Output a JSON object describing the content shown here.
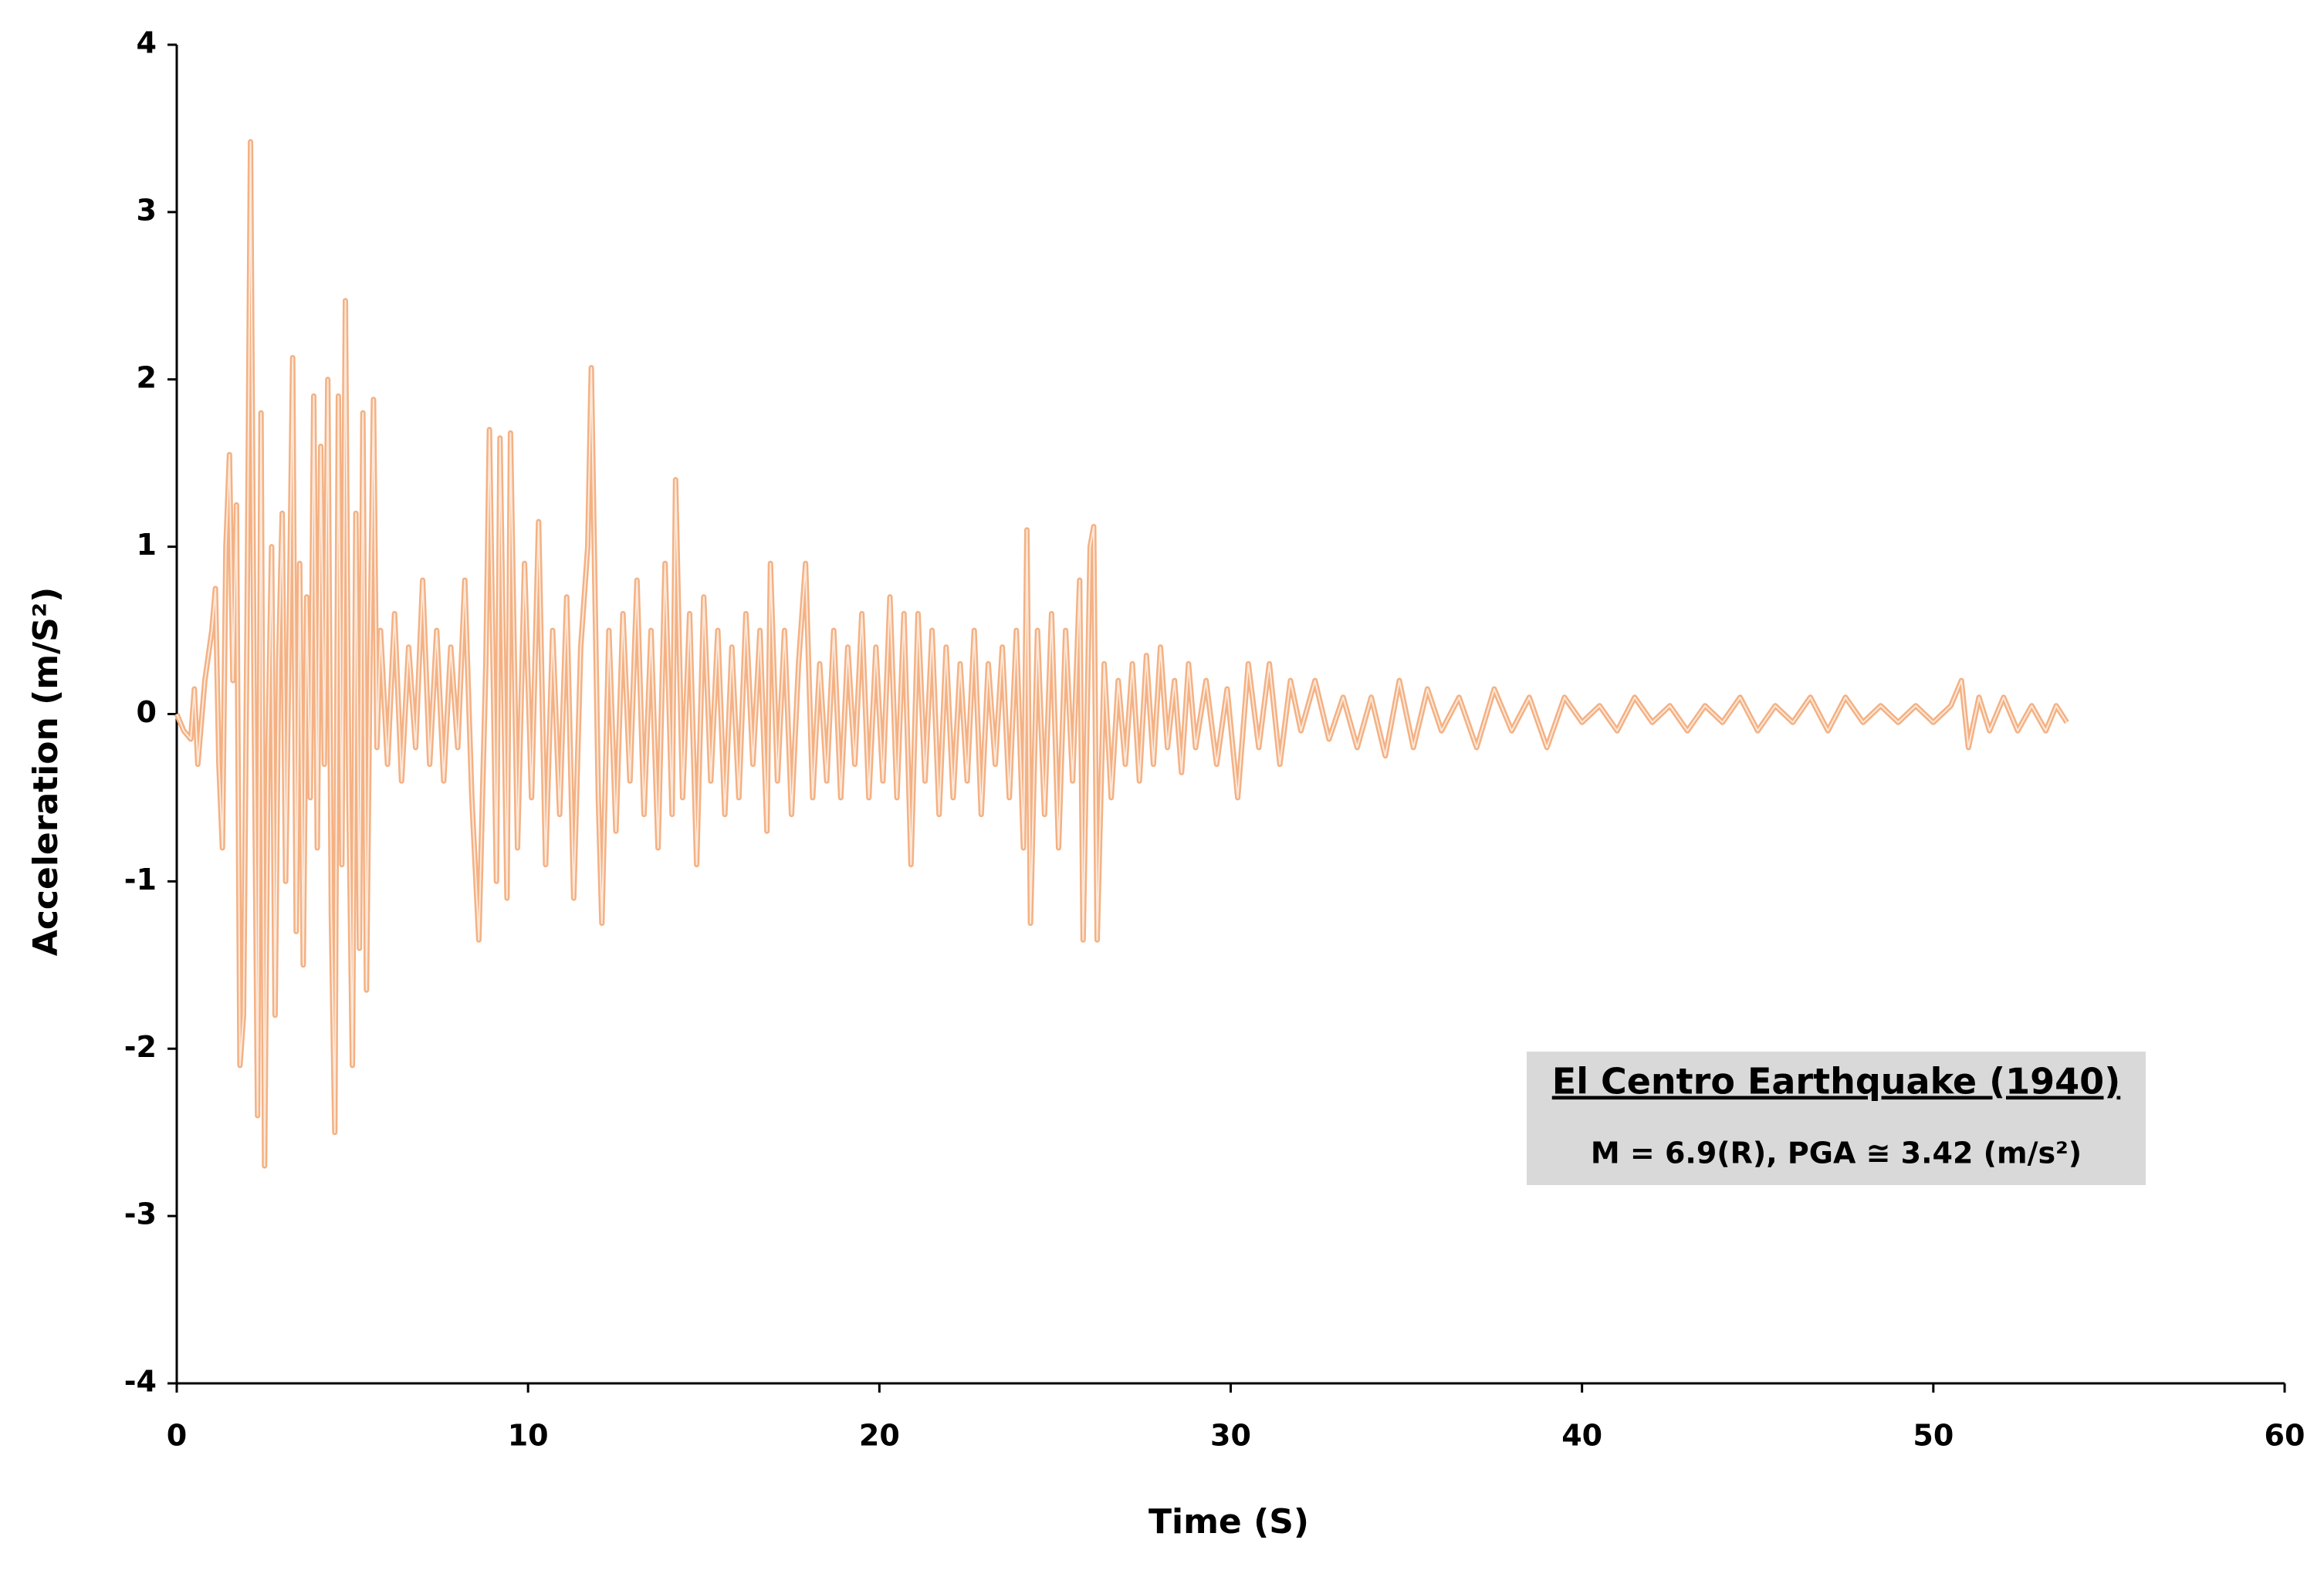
{
  "chart_data": {
    "type": "line",
    "xlabel": "Time (S)",
    "ylabel": "Acceleration (m/S²)",
    "annotation": {
      "title": "El Centro Earthquake  (1940)",
      "text": "M = 6.9(R), PGA ≅ 3.42 (m/s²)"
    },
    "color": "#f4b183",
    "xlim": [
      0,
      60
    ],
    "xticks": [
      0,
      10,
      20,
      30,
      40,
      50,
      60
    ],
    "ylim": [
      -4,
      4
    ],
    "yticks": [
      -4,
      -3,
      -2,
      -1,
      0,
      1,
      2,
      3,
      4
    ],
    "grid": false,
    "x": [
      0,
      0.2,
      0.4,
      0.5,
      0.6,
      0.8,
      1.0,
      1.1,
      1.2,
      1.3,
      1.4,
      1.5,
      1.6,
      1.7,
      1.8,
      1.9,
      2.0,
      2.1,
      2.2,
      2.3,
      2.4,
      2.5,
      2.6,
      2.7,
      2.8,
      2.9,
      3.0,
      3.1,
      3.2,
      3.3,
      3.4,
      3.5,
      3.6,
      3.7,
      3.8,
      3.9,
      4.0,
      4.1,
      4.2,
      4.3,
      4.4,
      4.5,
      4.6,
      4.7,
      4.8,
      4.9,
      5.0,
      5.1,
      5.2,
      5.3,
      5.4,
      5.5,
      5.6,
      5.7,
      5.8,
      6.0,
      6.2,
      6.4,
      6.6,
      6.8,
      7.0,
      7.2,
      7.4,
      7.6,
      7.8,
      8.0,
      8.2,
      8.4,
      8.6,
      8.8,
      8.9,
      9.1,
      9.2,
      9.4,
      9.5,
      9.7,
      9.9,
      10.1,
      10.3,
      10.5,
      10.7,
      10.9,
      11.1,
      11.3,
      11.5,
      11.7,
      11.8,
      12.0,
      12.1,
      12.3,
      12.5,
      12.7,
      12.9,
      13.1,
      13.3,
      13.5,
      13.7,
      13.9,
      14.1,
      14.2,
      14.4,
      14.6,
      14.8,
      15.0,
      15.2,
      15.4,
      15.6,
      15.8,
      16.0,
      16.2,
      16.4,
      16.6,
      16.8,
      16.9,
      17.1,
      17.3,
      17.5,
      17.7,
      17.9,
      18.1,
      18.3,
      18.5,
      18.7,
      18.9,
      19.1,
      19.3,
      19.5,
      19.7,
      19.9,
      20.1,
      20.3,
      20.5,
      20.7,
      20.9,
      21.1,
      21.3,
      21.5,
      21.7,
      21.9,
      22.1,
      22.3,
      22.5,
      22.7,
      22.9,
      23.1,
      23.3,
      23.5,
      23.7,
      23.9,
      24.1,
      24.2,
      24.3,
      24.5,
      24.7,
      24.9,
      25.1,
      25.3,
      25.5,
      25.7,
      25.8,
      26.0,
      26.1,
      26.2,
      26.4,
      26.6,
      26.8,
      27.0,
      27.2,
      27.4,
      27.6,
      27.8,
      28.0,
      28.2,
      28.4,
      28.6,
      28.8,
      29.0,
      29.3,
      29.6,
      29.9,
      30.2,
      30.5,
      30.8,
      31.1,
      31.4,
      31.7,
      32.0,
      32.4,
      32.8,
      33.2,
      33.6,
      34.0,
      34.4,
      34.8,
      35.2,
      35.6,
      36.0,
      36.5,
      37.0,
      37.5,
      38.0,
      38.5,
      39.0,
      39.5,
      40.0,
      40.5,
      41,
      41.5,
      42,
      42.5,
      43,
      43.5,
      44,
      44.5,
      45,
      45.5,
      46,
      46.5,
      47,
      47.5,
      48,
      48.5,
      49,
      49.5,
      50,
      50.5,
      50.8,
      51.0,
      51.3,
      51.6,
      52.0,
      52.4,
      52.8,
      53.2,
      53.5,
      53.8
    ],
    "values": [
      0,
      -0.1,
      -0.15,
      0.15,
      -0.3,
      0.2,
      0.5,
      0.75,
      -0.3,
      -0.8,
      1.0,
      1.55,
      0.2,
      1.25,
      -2.1,
      -1.8,
      0.5,
      3.42,
      0.2,
      -2.4,
      1.8,
      -2.7,
      -0.2,
      1.0,
      -1.8,
      0.3,
      1.2,
      -1.0,
      0.5,
      2.13,
      -1.3,
      0.9,
      -1.5,
      0.7,
      -0.5,
      1.9,
      -0.8,
      1.6,
      -0.3,
      2.0,
      -1.2,
      -2.5,
      1.9,
      -0.9,
      2.47,
      -0.5,
      -2.1,
      1.2,
      -1.4,
      1.8,
      -1.65,
      0.3,
      1.88,
      -0.2,
      0.5,
      -0.3,
      0.6,
      -0.4,
      0.4,
      -0.2,
      0.8,
      -0.3,
      0.5,
      -0.4,
      0.4,
      -0.2,
      0.8,
      -0.5,
      -1.35,
      0.3,
      1.7,
      -1.0,
      1.65,
      -1.1,
      1.68,
      -0.8,
      0.9,
      -0.5,
      1.15,
      -0.9,
      0.5,
      -0.6,
      0.7,
      -1.1,
      0.4,
      1.0,
      2.07,
      -0.5,
      -1.25,
      0.5,
      -0.7,
      0.6,
      -0.4,
      0.8,
      -0.6,
      0.5,
      -0.8,
      0.9,
      -0.6,
      1.4,
      -0.5,
      0.6,
      -0.9,
      0.7,
      -0.4,
      0.5,
      -0.6,
      0.4,
      -0.5,
      0.6,
      -0.3,
      0.5,
      -0.7,
      0.9,
      -0.4,
      0.5,
      -0.6,
      0.3,
      0.9,
      -0.5,
      0.3,
      -0.4,
      0.5,
      -0.5,
      0.4,
      -0.3,
      0.6,
      -0.5,
      0.4,
      -0.4,
      0.7,
      -0.5,
      0.6,
      -0.9,
      0.6,
      -0.4,
      0.5,
      -0.6,
      0.4,
      -0.5,
      0.3,
      -0.4,
      0.5,
      -0.6,
      0.3,
      -0.3,
      0.4,
      -0.5,
      0.5,
      -0.8,
      1.1,
      -1.25,
      0.5,
      -0.6,
      0.6,
      -0.8,
      0.5,
      -0.4,
      0.8,
      -1.35,
      1.0,
      1.12,
      -1.35,
      0.3,
      -0.5,
      0.2,
      -0.3,
      0.3,
      -0.4,
      0.35,
      -0.3,
      0.4,
      -0.2,
      0.2,
      -0.35,
      0.3,
      -0.2,
      0.2,
      -0.3,
      0.15,
      -0.5,
      0.3,
      -0.2,
      0.3,
      -0.3,
      0.2,
      -0.1,
      0.2,
      -0.15,
      0.1,
      -0.2,
      0.1,
      -0.25,
      0.2,
      -0.2,
      0.15,
      -0.1,
      0.1,
      -0.2,
      0.15,
      -0.1,
      0.1,
      -0.2,
      0.1,
      -0.05,
      0.05,
      -0.1,
      0.1,
      -0.05,
      0.05,
      -0.1,
      0.05,
      -0.05,
      0.1,
      -0.1,
      0.05,
      -0.05,
      0.1,
      -0.1,
      0.1,
      -0.05,
      0.05,
      -0.05,
      0.05,
      -0.05,
      0.05,
      0.2,
      -0.2,
      0.1,
      -0.1,
      0.1,
      -0.1,
      0.05,
      -0.1,
      0.05,
      -0.05
    ]
  }
}
